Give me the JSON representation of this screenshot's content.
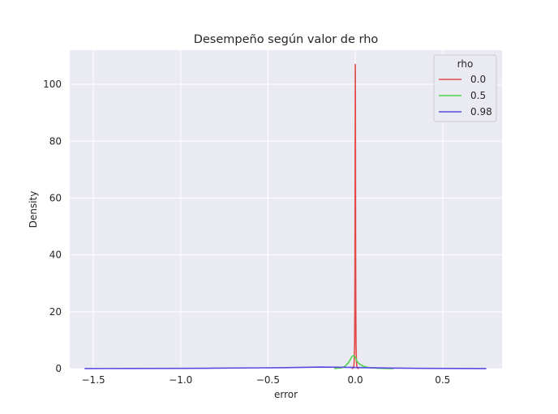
{
  "chart_data": {
    "type": "line",
    "title": "Desempeño según valor de rho",
    "xlabel": "error",
    "ylabel": "Density",
    "xlim": [
      -1.635,
      0.84
    ],
    "ylim": [
      0,
      112
    ],
    "xticks": [
      -1.5,
      -1.0,
      -0.5,
      0.0,
      0.5
    ],
    "xtick_labels": [
      "−1.5",
      "−1.0",
      "−0.5",
      "0.0",
      "0.5"
    ],
    "yticks": [
      0,
      20,
      40,
      60,
      80,
      100
    ],
    "ytick_labels": [
      "0",
      "20",
      "40",
      "60",
      "80",
      "100"
    ],
    "grid": true,
    "legend": {
      "title": "rho",
      "position": "top-right",
      "entries": [
        "0.0",
        "0.5",
        "0.98"
      ]
    },
    "series": [
      {
        "name": "0.0",
        "color": "#e24a4a",
        "x": [
          -0.02,
          -0.012,
          -0.008,
          -0.006,
          -0.004,
          -0.003,
          -0.002,
          -0.001,
          -0.0005,
          0.0,
          0.0005,
          0.001,
          0.002,
          0.003,
          0.004,
          0.006,
          0.008,
          0.012,
          0.02
        ],
        "y": [
          0,
          0.2,
          1.0,
          3.0,
          9.0,
          20,
          40,
          75,
          95,
          107,
          95,
          75,
          40,
          20,
          9.0,
          3.0,
          1.0,
          0.2,
          0
        ]
      },
      {
        "name": "0.5",
        "color": "#4cd44c",
        "x": [
          -0.12,
          -0.08,
          -0.06,
          -0.04,
          -0.03,
          -0.02,
          -0.01,
          0.0,
          0.01,
          0.02,
          0.04,
          0.06,
          0.08,
          0.12,
          0.16,
          0.2,
          0.22
        ],
        "y": [
          0,
          0.3,
          0.8,
          2.0,
          3.0,
          4.2,
          4.6,
          4.0,
          2.6,
          1.8,
          1.0,
          0.6,
          0.35,
          0.15,
          0.06,
          0.02,
          0
        ]
      },
      {
        "name": "0.98",
        "color": "#5a4ae0",
        "x": [
          -1.55,
          -1.3,
          -1.0,
          -0.8,
          -0.6,
          -0.4,
          -0.3,
          -0.2,
          -0.1,
          -0.05,
          0.0,
          0.05,
          0.1,
          0.2,
          0.4,
          0.6,
          0.75
        ],
        "y": [
          0.02,
          0.05,
          0.1,
          0.15,
          0.25,
          0.35,
          0.45,
          0.55,
          0.5,
          0.45,
          0.4,
          0.35,
          0.3,
          0.2,
          0.1,
          0.04,
          0.02
        ]
      }
    ]
  }
}
